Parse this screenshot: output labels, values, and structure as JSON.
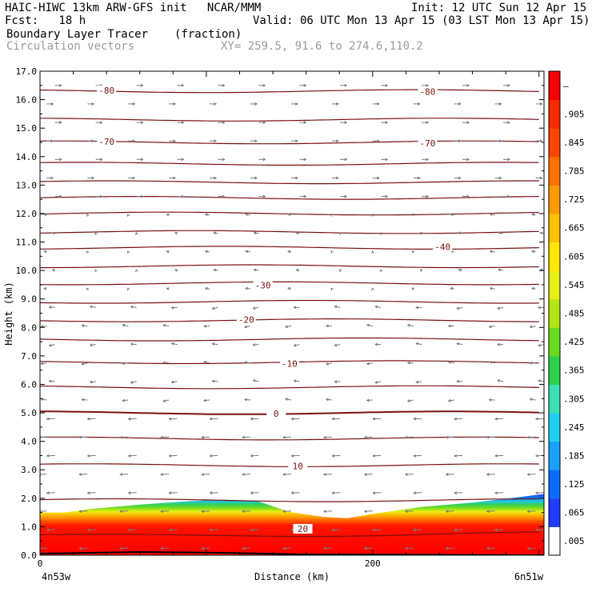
{
  "header": {
    "title_left": "HAIC-HIWC 13km ARW-GFS init   NCAR/MMM",
    "init": "Init: 12 UTC Sun 12 Apr 15",
    "fcst": "Fcst:   18 h",
    "valid": "Valid: 06 UTC Mon 13 Apr 15 (03 LST Mon 13 Apr 15)",
    "field": "Boundary Layer Tracer",
    "units": "(fraction)",
    "vectors": "Circulation vectors",
    "xy": "XY= 259.5, 91.6 to 274.6,110.2"
  },
  "chart_data": {
    "type": "heatmap",
    "ylabel": "Height (km)",
    "xlabel": "Distance (km)",
    "x_left_label": "4n53w",
    "x_right_label": "6n51w",
    "xlim": [
      0,
      303
    ],
    "ylim": [
      0,
      17
    ],
    "x_ticks": [
      0,
      200
    ],
    "y_ticks": [
      "0.0",
      "1.0",
      "2.0",
      "3.0",
      "4.0",
      "5.0",
      "6.0",
      "7.0",
      "8.0",
      "9.0",
      "10.0",
      "11.0",
      "12.0",
      "13.0",
      "14.0",
      "15.0",
      "16.0",
      "17.0"
    ],
    "colorbar_labels": [
      ".005",
      ".065",
      ".125",
      ".185",
      ".245",
      ".305",
      ".365",
      ".425",
      ".485",
      ".545",
      ".605",
      ".665",
      ".725",
      ".785",
      ".845",
      ".905",
      "–"
    ],
    "colorbar_colors": [
      "#ffffff",
      "#1e3cff",
      "#0a6cff",
      "#1aa0ff",
      "#21d0f0",
      "#3ce0b4",
      "#2ed24a",
      "#6adc20",
      "#b4e614",
      "#e6ee16",
      "#ffe600",
      "#ffc200",
      "#ff9a00",
      "#ff7000",
      "#ff4400",
      "#ff2a00",
      "#ff0000"
    ],
    "tracer_profile": {
      "x": [
        0,
        15,
        30,
        60,
        90,
        110,
        130,
        150,
        170,
        178,
        185,
        200,
        230,
        260,
        280,
        303
      ],
      "top_km": [
        1.5,
        1.5,
        1.62,
        1.78,
        1.9,
        1.95,
        1.92,
        1.52,
        1.35,
        1.32,
        1.3,
        1.45,
        1.7,
        1.85,
        1.98,
        2.15
      ]
    },
    "contour_labels": [
      {
        "text": "-80",
        "x": 40,
        "y": 16.3
      },
      {
        "text": "-80",
        "x": 233,
        "y": 16.25
      },
      {
        "text": "-70",
        "x": 40,
        "y": 14.5
      },
      {
        "text": "-70",
        "x": 233,
        "y": 14.45
      },
      {
        "text": "-40",
        "x": 242,
        "y": 10.8
      },
      {
        "text": "-30",
        "x": 134,
        "y": 9.45
      },
      {
        "text": "-20",
        "x": 124,
        "y": 8.25
      },
      {
        "text": "-10",
        "x": 150,
        "y": 6.7
      },
      {
        "text": "0",
        "x": 142,
        "y": 4.95
      },
      {
        "text": "10",
        "x": 155,
        "y": 3.1
      },
      {
        "text": "20",
        "x": 158,
        "y": 0.9
      }
    ]
  }
}
